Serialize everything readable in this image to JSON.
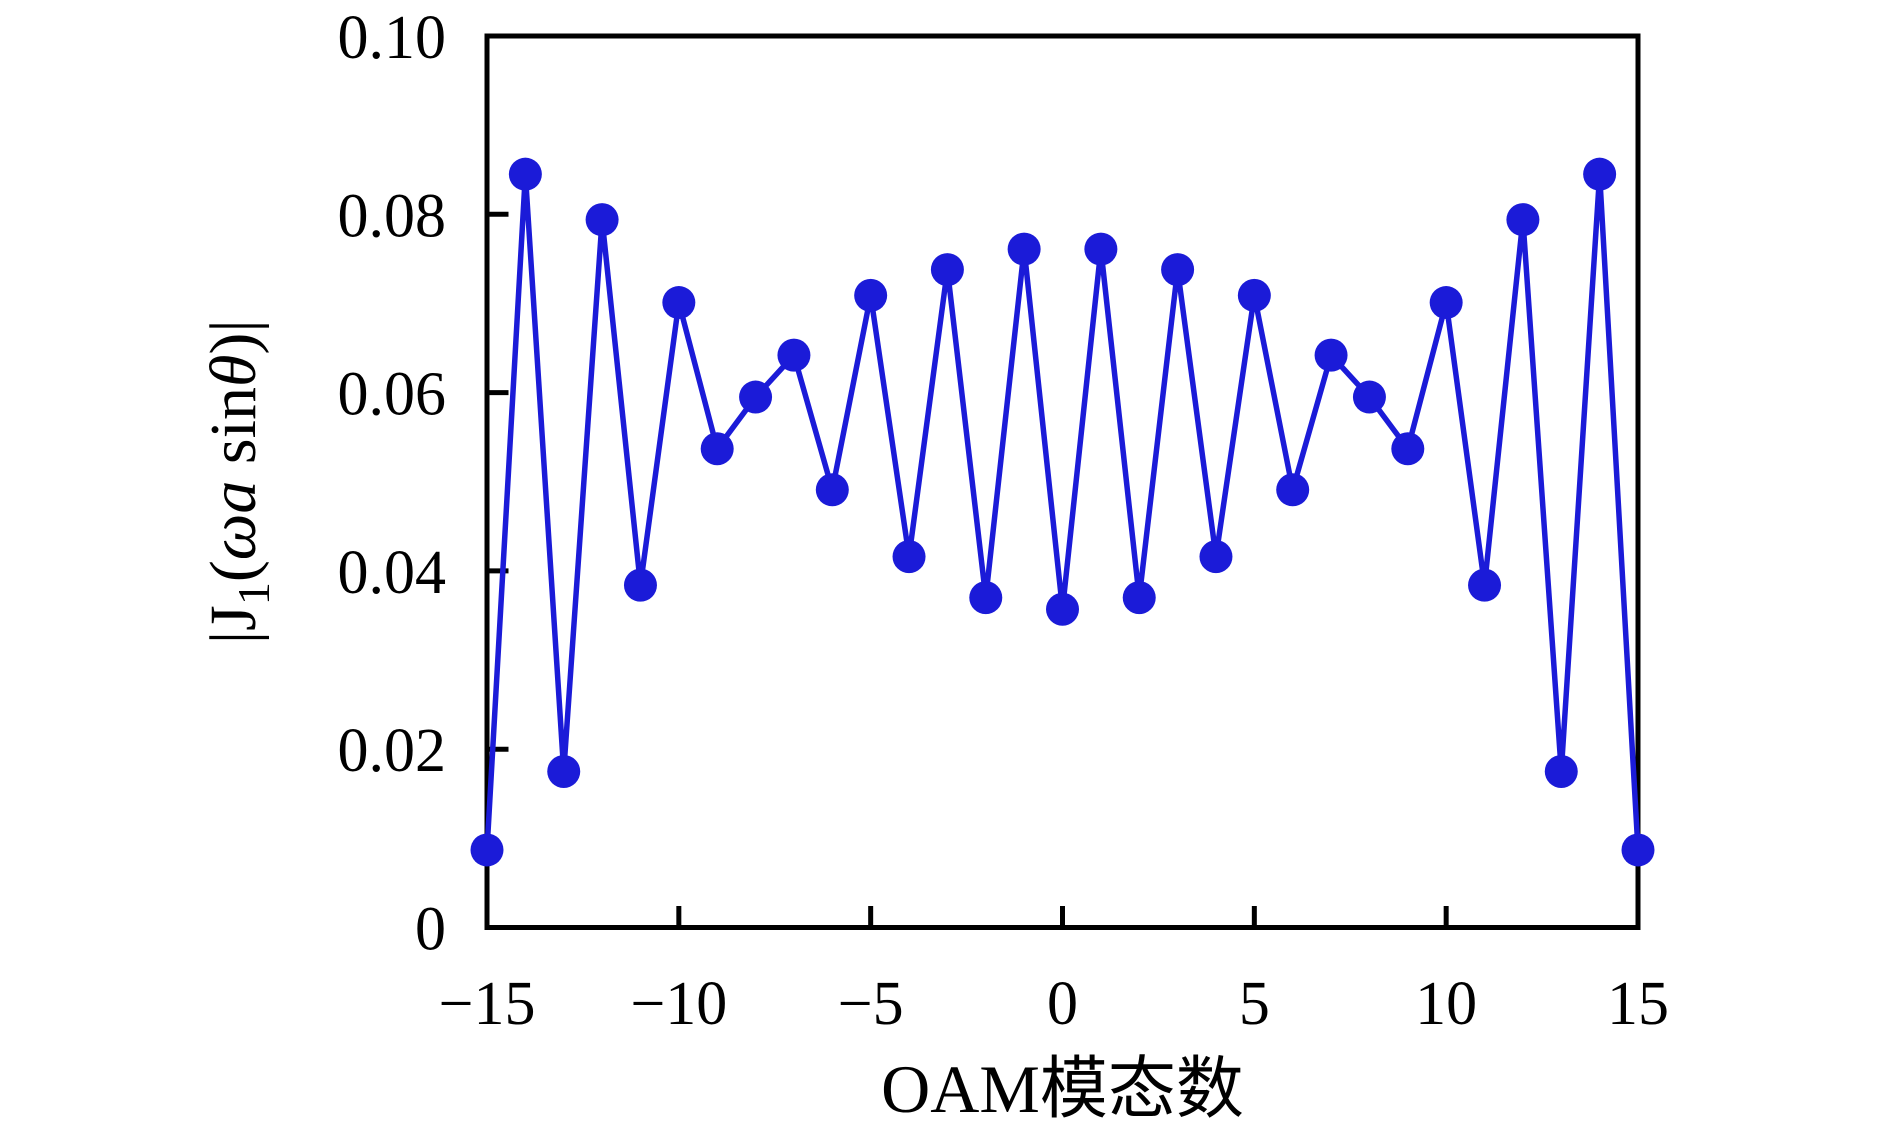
{
  "figure": {
    "background_color": "#ffffff",
    "axis_color": "#000000",
    "series_color": "#1b1bd8"
  },
  "chart_data": {
    "type": "line",
    "title": "",
    "xlabel": "OAM模态数",
    "ylabel": "|J1(ωa sinθ)|",
    "ylabel_parts": [
      {
        "text": "|J",
        "style": "normal"
      },
      {
        "text": "1",
        "style": "sub"
      },
      {
        "text": "(",
        "style": "normal"
      },
      {
        "text": "ωa",
        "style": "italic"
      },
      {
        "text": " sin",
        "style": "normal"
      },
      {
        "text": "θ",
        "style": "italic"
      },
      {
        "text": ")|",
        "style": "normal"
      }
    ],
    "xlim": [
      -15,
      15
    ],
    "ylim": [
      0,
      0.1
    ],
    "grid": false,
    "legend": null,
    "marker": "circle",
    "x_ticks": [
      {
        "value": -15,
        "label": "−15"
      },
      {
        "value": -10,
        "label": "−10"
      },
      {
        "value": -5,
        "label": "−5"
      },
      {
        "value": 0,
        "label": "0"
      },
      {
        "value": 5,
        "label": "5"
      },
      {
        "value": 10,
        "label": "10"
      },
      {
        "value": 15,
        "label": "15"
      }
    ],
    "y_ticks": [
      {
        "value": 0.0,
        "label": "0"
      },
      {
        "value": 0.02,
        "label": "0.02"
      },
      {
        "value": 0.04,
        "label": "0.04"
      },
      {
        "value": 0.06,
        "label": "0.06"
      },
      {
        "value": 0.08,
        "label": "0.08"
      },
      {
        "value": 0.1,
        "label": "0.10"
      }
    ],
    "x": [
      -15,
      -14,
      -13,
      -12,
      -11,
      -10,
      -9,
      -8,
      -7,
      -6,
      -5,
      -4,
      -3,
      -2,
      -1,
      0,
      1,
      2,
      3,
      4,
      5,
      6,
      7,
      8,
      9,
      10,
      11,
      12,
      13,
      14,
      15
    ],
    "y": [
      0.0087,
      0.0845,
      0.0175,
      0.0794,
      0.0384,
      0.0701,
      0.0537,
      0.0595,
      0.0642,
      0.0491,
      0.0709,
      0.0416,
      0.0738,
      0.037,
      0.0761,
      0.0357,
      0.0761,
      0.037,
      0.0738,
      0.0416,
      0.0709,
      0.0491,
      0.0642,
      0.0595,
      0.0537,
      0.0701,
      0.0384,
      0.0794,
      0.0175,
      0.0845,
      0.0087
    ]
  }
}
